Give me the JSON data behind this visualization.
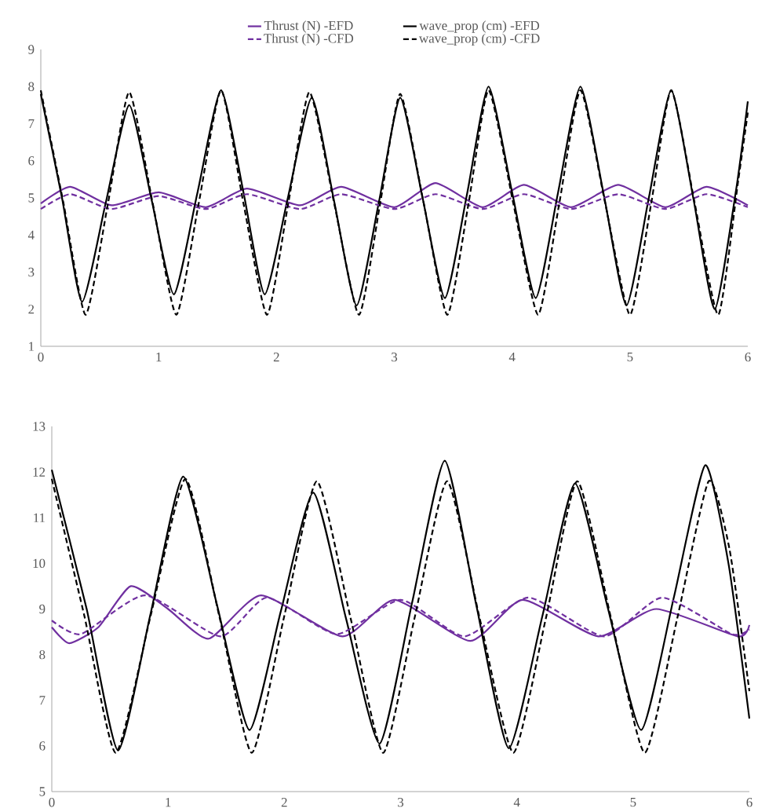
{
  "chart_data": [
    {
      "type": "line",
      "xlim": [
        0,
        6
      ],
      "xticks": [
        0,
        1,
        2,
        3,
        4,
        5,
        6
      ],
      "ylim": [
        1,
        9
      ],
      "yticks": [
        1,
        2,
        3,
        4,
        5,
        6,
        7,
        8,
        9
      ],
      "legend": "top",
      "series": [
        {
          "name": "Thrust (N) -EFD",
          "color": "#7030a0",
          "line_style": "solid",
          "x": [
            0,
            0.25,
            0.6,
            1.0,
            1.4,
            1.75,
            2.2,
            2.55,
            3.0,
            3.35,
            3.75,
            4.1,
            4.5,
            4.9,
            5.3,
            5.65,
            6.0
          ],
          "values": [
            4.85,
            5.3,
            4.8,
            5.15,
            4.75,
            5.25,
            4.8,
            5.3,
            4.75,
            5.4,
            4.75,
            5.35,
            4.75,
            5.35,
            4.75,
            5.3,
            4.8
          ]
        },
        {
          "name": "wave_prop (cm) -EFD",
          "color": "#000000",
          "line_style": "solid",
          "x": [
            0,
            0.18,
            0.35,
            0.55,
            0.75,
            0.94,
            1.13,
            1.33,
            1.53,
            1.72,
            1.9,
            2.1,
            2.3,
            2.49,
            2.68,
            2.87,
            3.05,
            3.24,
            3.43,
            3.62,
            3.8,
            4.0,
            4.2,
            4.39,
            4.58,
            4.78,
            4.97,
            5.16,
            5.35,
            5.54,
            5.72,
            5.9,
            6.0
          ],
          "values": [
            7.8,
            5.0,
            2.2,
            4.85,
            7.5,
            4.95,
            2.4,
            5.15,
            7.9,
            5.15,
            2.4,
            5.05,
            7.7,
            4.9,
            2.1,
            4.9,
            7.7,
            5.0,
            2.3,
            5.15,
            8.0,
            5.15,
            2.3,
            5.15,
            8.0,
            5.05,
            2.1,
            5.0,
            7.9,
            4.95,
            2.0,
            5.2,
            7.6
          ]
        },
        {
          "name": "Thrust (N) -CFD",
          "color": "#7030a0",
          "line_style": "dashed",
          "x": [
            0,
            0.25,
            0.6,
            1.0,
            1.4,
            1.75,
            2.2,
            2.55,
            3.0,
            3.35,
            3.75,
            4.1,
            4.5,
            4.9,
            5.3,
            5.65,
            6.0
          ],
          "values": [
            4.7,
            5.1,
            4.7,
            5.05,
            4.7,
            5.1,
            4.7,
            5.1,
            4.7,
            5.1,
            4.7,
            5.1,
            4.7,
            5.1,
            4.7,
            5.1,
            4.75
          ]
        },
        {
          "name": "wave_prop (cm) -CFD",
          "color": "#000000",
          "line_style": "dashed",
          "x": [
            0,
            0.19,
            0.38,
            0.57,
            0.75,
            0.95,
            1.15,
            1.34,
            1.53,
            1.72,
            1.92,
            2.1,
            2.28,
            2.49,
            2.7,
            2.88,
            3.05,
            3.25,
            3.45,
            3.63,
            3.8,
            4.01,
            4.22,
            4.4,
            4.58,
            4.79,
            5.0,
            5.18,
            5.35,
            5.55,
            5.75,
            5.92,
            6.0
          ],
          "values": [
            7.9,
            4.9,
            1.85,
            4.85,
            7.85,
            4.85,
            1.85,
            4.85,
            7.9,
            4.85,
            1.85,
            4.85,
            7.85,
            4.85,
            1.85,
            4.85,
            7.8,
            4.85,
            1.85,
            4.85,
            7.9,
            4.85,
            1.85,
            4.85,
            7.9,
            4.85,
            1.85,
            4.85,
            7.9,
            4.85,
            1.85,
            5.5,
            7.3
          ]
        }
      ]
    },
    {
      "type": "line",
      "xlim": [
        0,
        6
      ],
      "xticks": [
        0,
        1,
        2,
        3,
        4,
        5,
        6
      ],
      "ylim": [
        5,
        13
      ],
      "yticks": [
        5,
        6,
        7,
        8,
        9,
        10,
        11,
        12,
        13
      ],
      "series": [
        {
          "color": "#7030a0",
          "line_style": "solid",
          "x": [
            0,
            0.15,
            0.4,
            0.68,
            1.0,
            1.35,
            1.8,
            2.5,
            2.95,
            3.6,
            4.05,
            4.7,
            5.2,
            5.9,
            6.0
          ],
          "values": [
            8.6,
            8.25,
            8.6,
            9.5,
            9.0,
            8.35,
            9.3,
            8.4,
            9.2,
            8.3,
            9.2,
            8.4,
            9.0,
            8.4,
            8.65
          ]
        },
        {
          "color": "#000000",
          "line_style": "solid",
          "x": [
            0,
            0.3,
            0.57,
            0.85,
            1.13,
            1.42,
            1.7,
            1.97,
            2.25,
            2.53,
            2.82,
            3.1,
            3.38,
            3.65,
            3.93,
            4.22,
            4.5,
            4.78,
            5.07,
            5.35,
            5.62,
            5.82,
            6.0
          ],
          "values": [
            12.05,
            9.0,
            5.9,
            8.9,
            11.9,
            9.1,
            6.35,
            8.95,
            11.55,
            8.8,
            6.05,
            9.15,
            12.25,
            9.1,
            5.95,
            8.85,
            11.75,
            9.05,
            6.35,
            9.25,
            12.15,
            10.0,
            6.6
          ]
        },
        {
          "color": "#7030a0",
          "line_style": "dashed",
          "x": [
            0,
            0.25,
            0.8,
            1.45,
            1.85,
            2.45,
            3.0,
            3.55,
            4.1,
            4.75,
            5.25,
            5.85,
            6.0
          ],
          "values": [
            8.75,
            8.45,
            9.3,
            8.4,
            9.25,
            8.45,
            9.2,
            8.4,
            9.25,
            8.4,
            9.25,
            8.45,
            8.55
          ]
        },
        {
          "color": "#000000",
          "line_style": "dashed",
          "x": [
            0,
            0.28,
            0.55,
            0.85,
            1.15,
            1.44,
            1.72,
            2.0,
            2.28,
            2.57,
            2.85,
            3.12,
            3.4,
            3.68,
            3.97,
            4.25,
            4.52,
            4.81,
            5.1,
            5.38,
            5.65,
            5.83,
            6.0
          ],
          "values": [
            11.85,
            8.85,
            5.85,
            8.85,
            11.85,
            8.85,
            5.85,
            8.85,
            11.8,
            8.8,
            5.85,
            8.8,
            11.8,
            8.8,
            5.85,
            8.8,
            11.8,
            8.8,
            5.85,
            8.8,
            11.8,
            10.3,
            7.2
          ]
        }
      ]
    }
  ]
}
